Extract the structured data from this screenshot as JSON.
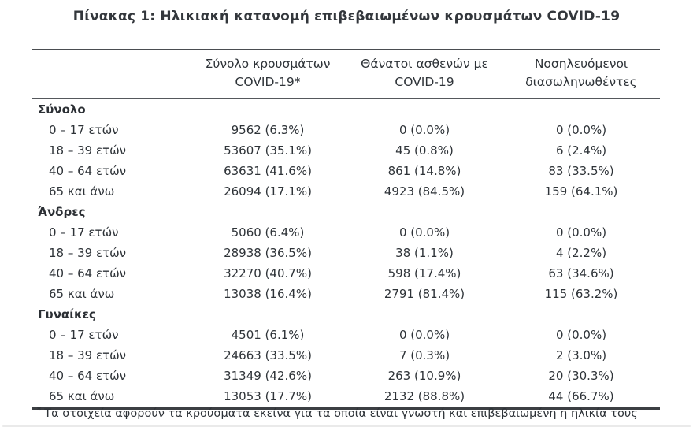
{
  "title": "Πίνακας 1: Ηλικιακή κατανομή επιβεβαιωμένων κρουσμάτων COVID-19",
  "colors": {
    "text": "#2e3338",
    "rule_dark": "#3c3f43",
    "rule_mid": "#55585c",
    "page_edge": "#eaeaea"
  },
  "table": {
    "columns": [
      {
        "line1": "Σύνολο κρουσμάτων",
        "line2": "COVID-19*"
      },
      {
        "line1": "Θάνατοι ασθενών με",
        "line2": "COVID-19"
      },
      {
        "line1": "Νοσηλευόμενοι",
        "line2": "διασωληνωθέντες"
      }
    ],
    "sections": [
      {
        "label": "Σύνολο",
        "rows": [
          {
            "age": "0 – 17 ετών",
            "cases": "9562 (6.3%)",
            "deaths": "0 (0.0%)",
            "intubated": "0 (0.0%)"
          },
          {
            "age": "18 – 39 ετών",
            "cases": "53607 (35.1%)",
            "deaths": "45 (0.8%)",
            "intubated": "6 (2.4%)"
          },
          {
            "age": "40 – 64 ετών",
            "cases": "63631 (41.6%)",
            "deaths": "861 (14.8%)",
            "intubated": "83 (33.5%)"
          },
          {
            "age": "65 και άνω",
            "cases": "26094 (17.1%)",
            "deaths": "4923 (84.5%)",
            "intubated": "159 (64.1%)"
          }
        ]
      },
      {
        "label": "Άνδρες",
        "rows": [
          {
            "age": "0 – 17 ετών",
            "cases": "5060 (6.4%)",
            "deaths": "0 (0.0%)",
            "intubated": "0 (0.0%)"
          },
          {
            "age": "18 – 39 ετών",
            "cases": "28938 (36.5%)",
            "deaths": "38 (1.1%)",
            "intubated": "4 (2.2%)"
          },
          {
            "age": "40 – 64 ετών",
            "cases": "32270 (40.7%)",
            "deaths": "598 (17.4%)",
            "intubated": "63 (34.6%)"
          },
          {
            "age": "65 και άνω",
            "cases": "13038 (16.4%)",
            "deaths": "2791 (81.4%)",
            "intubated": "115 (63.2%)"
          }
        ]
      },
      {
        "label": "Γυναίκες",
        "rows": [
          {
            "age": "0 – 17 ετών",
            "cases": "4501 (6.1%)",
            "deaths": "0 (0.0%)",
            "intubated": "0 (0.0%)"
          },
          {
            "age": "18 – 39 ετών",
            "cases": "24663 (33.5%)",
            "deaths": "7 (0.3%)",
            "intubated": "2 (3.0%)"
          },
          {
            "age": "40 – 64 ετών",
            "cases": "31349 (42.6%)",
            "deaths": "263 (10.9%)",
            "intubated": "20 (30.3%)"
          },
          {
            "age": "65 και άνω",
            "cases": "13053 (17.7%)",
            "deaths": "2132 (88.8%)",
            "intubated": "44 (66.7%)"
          }
        ]
      }
    ]
  },
  "footnote": {
    "marker": "*",
    "text": "Τα στοιχεία αφορούν τα κρούσματα εκείνα για τα οποία είναι γνωστή και επιβεβαιωμένη η ηλικία τους"
  }
}
